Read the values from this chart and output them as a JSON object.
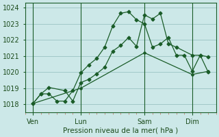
{
  "background_color": "#cce8e8",
  "grid_color": "#a0c8c8",
  "line_color": "#1a5c28",
  "title": "Pression niveau de la mer( hPa )",
  "ylim": [
    1017.5,
    1024.3
  ],
  "yticks": [
    1018,
    1019,
    1020,
    1021,
    1022,
    1023,
    1024
  ],
  "xlim": [
    0,
    12
  ],
  "xtick_labels": [
    "Ven",
    "Lun",
    "Sam",
    "Dim"
  ],
  "xtick_positions": [
    0.5,
    3.5,
    7.5,
    10.5
  ],
  "vline_positions": [
    0.5,
    3.5,
    7.5,
    10.5
  ],
  "series1_x": [
    0.5,
    1.0,
    1.5,
    2.5,
    3.0,
    3.5,
    4.0,
    4.5,
    5.0,
    5.5,
    6.0,
    6.5,
    7.0,
    7.5,
    8.0,
    8.5,
    9.0,
    9.5,
    10.5,
    11.0,
    11.5
  ],
  "series1_y": [
    1018.05,
    1018.65,
    1019.05,
    1018.85,
    1018.2,
    1019.35,
    1019.55,
    1019.9,
    1020.3,
    1021.3,
    1021.65,
    1022.15,
    1021.6,
    1023.55,
    1023.3,
    1023.65,
    1021.75,
    1021.55,
    1021.05,
    1021.05,
    1020.95
  ],
  "series2_x": [
    0.5,
    1.0,
    1.5,
    2.0,
    2.5,
    3.0,
    3.5,
    4.0,
    4.5,
    5.0,
    5.5,
    6.0,
    6.5,
    7.0,
    7.5,
    8.0,
    8.5,
    9.0,
    9.5,
    10.0,
    10.5,
    11.0,
    11.5
  ],
  "series2_y": [
    1018.05,
    1018.65,
    1018.65,
    1018.2,
    1018.2,
    1018.85,
    1019.95,
    1020.45,
    1020.85,
    1021.55,
    1022.85,
    1023.65,
    1023.75,
    1023.25,
    1023.0,
    1021.55,
    1021.75,
    1022.15,
    1021.05,
    1021.05,
    1020.05,
    1021.05,
    1020.0
  ],
  "series3_x": [
    0.5,
    3.5,
    7.5,
    10.5,
    11.5
  ],
  "series3_y": [
    1018.05,
    1019.0,
    1021.2,
    1019.85,
    1020.05
  ]
}
